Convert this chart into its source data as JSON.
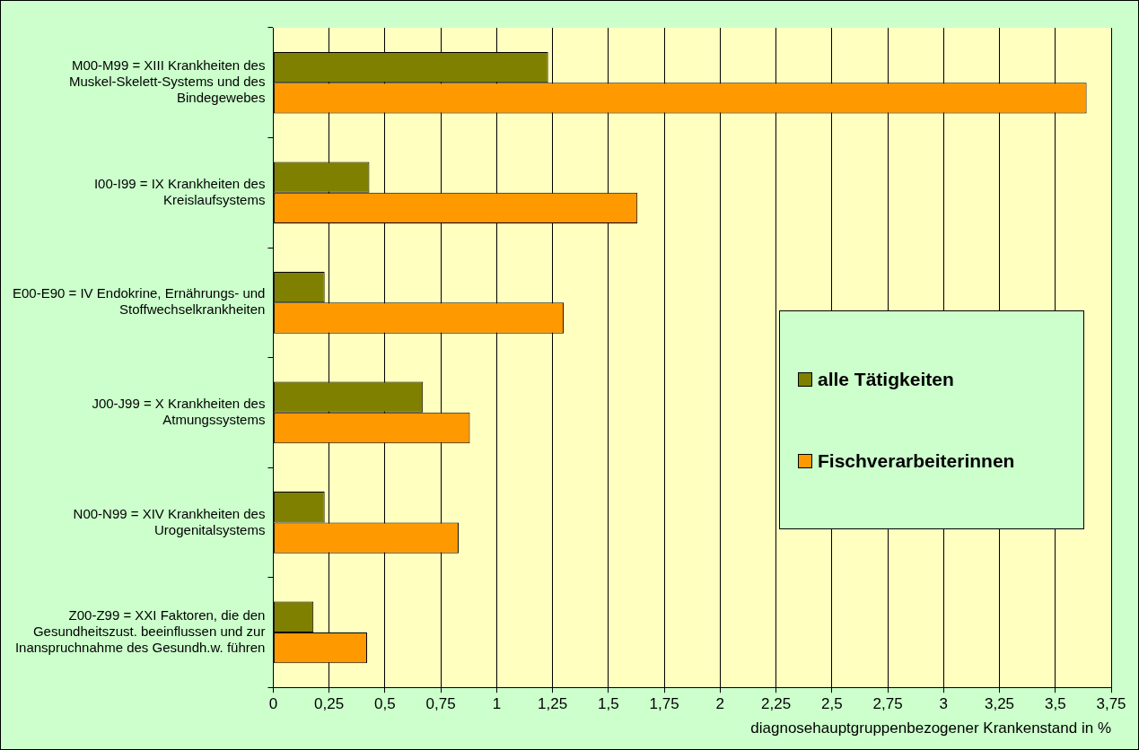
{
  "chart_data": {
    "type": "bar",
    "orientation": "horizontal",
    "xlabel": "diagnosehauptgruppenbezogener Krankenstand in %",
    "categories": [
      "M00-M99 = XIII Krankheiten des Muskel-Skelett-Systems und des Bindegewebes",
      "I00-I99 = IX Krankheiten des Kreislaufsystems",
      "E00-E90 = IV Endokrine, Ernährungs- und Stoffwechselkrankheiten",
      "J00-J99 = X Krankheiten des Atmungssystems",
      "N00-N99 = XIV Krankheiten des Urogenitalsystems",
      "Z00-Z99 = XXI Faktoren, die den Gesundheitszust. beeinflussen und zur Inanspruchnahme des Gesundh.w. führen"
    ],
    "series": [
      {
        "name": "alle Tätigkeiten",
        "color": "#808000",
        "values": [
          1.23,
          0.43,
          0.23,
          0.67,
          0.23,
          0.18
        ]
      },
      {
        "name": "Fischverarbeiterinnen",
        "color": "#ff9900",
        "values": [
          3.64,
          1.63,
          1.3,
          0.88,
          0.83,
          0.42
        ]
      }
    ],
    "xlim": [
      0,
      3.75
    ],
    "xticks": [
      0,
      {
        "value": 0.25,
        "label": "0,25"
      },
      {
        "value": 0.5,
        "label": "0,5"
      },
      {
        "value": 0.75,
        "label": "0,75"
      },
      1,
      {
        "value": 1.25,
        "label": "1,25"
      },
      {
        "value": 1.5,
        "label": "1,5"
      },
      {
        "value": 1.75,
        "label": "1,75"
      },
      2,
      {
        "value": 2.25,
        "label": "2,25"
      },
      {
        "value": 2.5,
        "label": "2,5"
      },
      {
        "value": 2.75,
        "label": "2,75"
      },
      3,
      {
        "value": 3.25,
        "label": "3,25"
      },
      {
        "value": 3.5,
        "label": "3,5"
      },
      {
        "value": 3.75,
        "label": "3,75"
      }
    ],
    "grid": "x",
    "legend": "right"
  }
}
